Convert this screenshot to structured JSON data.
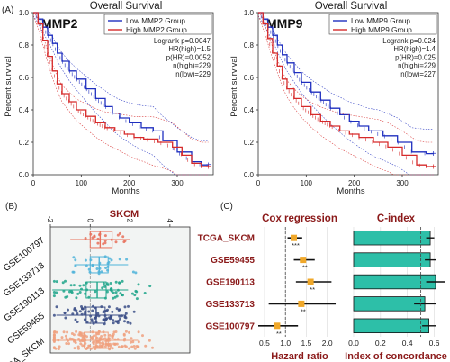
{
  "panel_labels": {
    "a": "(A)",
    "b": "(B)",
    "c": "(C)"
  },
  "chart_data": [
    {
      "type": "line",
      "title": "Overall Survival",
      "gene": "MMP2",
      "xlabel": "Months",
      "ylabel": "Percent survival",
      "xlim": [
        0,
        375
      ],
      "ylim": [
        0,
        1.0
      ],
      "xticks": [
        "0",
        "100",
        "200",
        "300"
      ],
      "yticks": [
        "0.0",
        "0.2",
        "0.4",
        "0.6",
        "0.8",
        "1.0"
      ],
      "legend": {
        "position": "top-right",
        "entries": [
          "Low MMP2 Group",
          "High MMP2 Group"
        ]
      },
      "stats": [
        "Logrank p=0.0047",
        "HR(high)=1.5",
        "p(HR)=0.0052",
        "n(high)=229",
        "n(low)=229"
      ],
      "series": [
        {
          "name": "Low MMP2 Group",
          "color": "#1f2fbf",
          "x": [
            0,
            10,
            20,
            30,
            40,
            50,
            60,
            75,
            90,
            110,
            130,
            150,
            165,
            180,
            200,
            225,
            250,
            270,
            300,
            330,
            350,
            365
          ],
          "y": [
            1.0,
            0.96,
            0.91,
            0.86,
            0.81,
            0.75,
            0.7,
            0.64,
            0.59,
            0.53,
            0.47,
            0.42,
            0.38,
            0.35,
            0.32,
            0.29,
            0.27,
            0.21,
            0.14,
            0.08,
            0.06,
            0.06
          ]
        },
        {
          "name": "High MMP2 Group",
          "color": "#d62a2a",
          "x": [
            0,
            10,
            20,
            30,
            40,
            50,
            60,
            75,
            90,
            110,
            130,
            150,
            170,
            190,
            210,
            230,
            260,
            290,
            310,
            330,
            350,
            365
          ],
          "y": [
            1.0,
            0.93,
            0.83,
            0.73,
            0.64,
            0.56,
            0.5,
            0.45,
            0.4,
            0.36,
            0.32,
            0.29,
            0.27,
            0.25,
            0.23,
            0.22,
            0.2,
            0.17,
            0.12,
            0.07,
            0.05,
            0.05
          ]
        }
      ]
    },
    {
      "type": "line",
      "title": "Overall Survival",
      "gene": "MMP9",
      "xlabel": "Months",
      "ylabel": "Percent survival",
      "xlim": [
        0,
        375
      ],
      "ylim": [
        0,
        1.0
      ],
      "xticks": [
        "0",
        "100",
        "200",
        "300"
      ],
      "yticks": [
        "0.0",
        "0.2",
        "0.4",
        "0.6",
        "0.8",
        "1.0"
      ],
      "legend": {
        "position": "top-right",
        "entries": [
          "Low MMP9 Group",
          "High MMP9 Group"
        ]
      },
      "stats": [
        "Logrank p=0.024",
        "HR(high)=1.4",
        "p(HR)=0.025",
        "n(high)=229",
        "n(low)=227"
      ],
      "series": [
        {
          "name": "Low MMP9 Group",
          "color": "#1f2fbf",
          "x": [
            0,
            10,
            20,
            30,
            40,
            50,
            60,
            75,
            90,
            110,
            130,
            150,
            170,
            190,
            210,
            230,
            260,
            290,
            320,
            350,
            365
          ],
          "y": [
            1.0,
            0.96,
            0.91,
            0.86,
            0.8,
            0.74,
            0.69,
            0.63,
            0.57,
            0.51,
            0.46,
            0.41,
            0.37,
            0.33,
            0.3,
            0.27,
            0.24,
            0.2,
            0.14,
            0.13,
            0.13
          ]
        },
        {
          "name": "High MMP9 Group",
          "color": "#d62a2a",
          "x": [
            0,
            10,
            20,
            30,
            40,
            50,
            60,
            75,
            90,
            110,
            130,
            150,
            170,
            190,
            210,
            240,
            270,
            300,
            330,
            350,
            365
          ],
          "y": [
            1.0,
            0.93,
            0.84,
            0.75,
            0.67,
            0.59,
            0.53,
            0.47,
            0.42,
            0.37,
            0.33,
            0.3,
            0.27,
            0.25,
            0.23,
            0.2,
            0.17,
            0.12,
            0.06,
            0.05,
            0.05
          ]
        }
      ]
    },
    {
      "type": "scatter",
      "title": "SKCM",
      "xlim": [
        -2,
        5
      ],
      "xticks": [
        "-2",
        "0",
        "2",
        "4"
      ],
      "categories": [
        "TCGA_SKCM",
        "GSE59455",
        "GSE190113",
        "GSE133713",
        "GSE100797"
      ],
      "series": [
        {
          "name": "GSE100797",
          "color": "#e8705a",
          "median": 0.5,
          "q1": 0.0,
          "q3": 1.1,
          "whisker": [
            -1.0,
            2.0
          ],
          "n": 20
        },
        {
          "name": "GSE133713",
          "color": "#4fb3d9",
          "median": 0.45,
          "q1": 0.0,
          "q3": 0.9,
          "whisker": [
            -0.8,
            1.9
          ],
          "n": 30
        },
        {
          "name": "GSE190113",
          "color": "#1ea58a",
          "median": 0.35,
          "q1": -0.2,
          "q3": 0.8,
          "whisker": [
            -1.9,
            1.9
          ],
          "n": 60
        },
        {
          "name": "GSE59455",
          "color": "#3b4d86",
          "median": 0.3,
          "q1": -0.2,
          "q3": 0.75,
          "whisker": [
            -1.7,
            1.8
          ],
          "n": 80
        },
        {
          "name": "TCGA_SKCM",
          "color": "#f0a07e",
          "median": 0.3,
          "q1": -0.3,
          "q3": 0.9,
          "whisker": [
            -1.9,
            2.4
          ],
          "n": 170
        }
      ]
    },
    {
      "type": "scatter",
      "title": "Cox regression",
      "xlabel": "Hazard ratio",
      "xlim": [
        0.35,
        2.35
      ],
      "xticks": [
        "0.5",
        "1.0",
        "1.5",
        "2.0"
      ],
      "ref_line": 1.0,
      "categories": [
        "TCGA_SKCM",
        "GSE59455",
        "GSE190113",
        "GSE133713",
        "GSE100797"
      ],
      "hr": [
        1.2,
        1.42,
        1.6,
        1.38,
        0.8
      ],
      "ci_low": [
        1.05,
        1.2,
        1.25,
        0.6,
        0.35
      ],
      "ci_high": [
        1.4,
        1.7,
        2.1,
        2.2,
        1.3
      ],
      "sig": [
        "***",
        "**",
        "**",
        "**",
        "**"
      ]
    },
    {
      "type": "bar",
      "title": "C-index",
      "xlabel": "Index of concordance",
      "xlim": [
        0,
        0.65
      ],
      "xticks": [
        "0.0",
        "0.2",
        "0.4",
        "0.6"
      ],
      "ref_line": 0.5,
      "categories": [
        "TCGA_SKCM",
        "GSE59455",
        "GSE190113",
        "GSE133713",
        "GSE100797"
      ],
      "values": [
        0.57,
        0.57,
        0.61,
        0.53,
        0.56
      ],
      "err": [
        0.03,
        0.04,
        0.07,
        0.08,
        0.05
      ]
    }
  ]
}
